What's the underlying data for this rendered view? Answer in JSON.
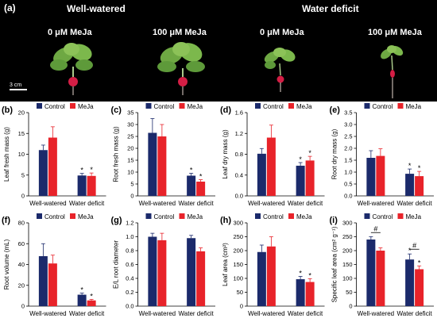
{
  "photo": {
    "panel_label": "(a)",
    "conditions": [
      "Well-watered",
      "Water deficit"
    ],
    "treatments": [
      "0 μM MeJa",
      "100 μM MeJa",
      "0 μM MeJa",
      "100 μM MeJa"
    ],
    "scale_label": "3 cm"
  },
  "colors": {
    "control": "#1b2a6b",
    "meja": "#e8232a",
    "photo_bg": "#000000",
    "leaf": "#6ea843",
    "root": "#d41e45"
  },
  "chart_data": [
    {
      "type": "bar",
      "panel": "(b)",
      "ylabel": "Leaf fresh mass (g)",
      "categories": [
        "Well-watered",
        "Water deficit"
      ],
      "ylim": [
        0,
        20
      ],
      "yticks": [
        0,
        5,
        10,
        15,
        20
      ],
      "legend": [
        "Control",
        "MeJa"
      ],
      "series": [
        {
          "name": "Control",
          "values": [
            11.0,
            4.9
          ],
          "errors": [
            1.2,
            0.5
          ],
          "marks": [
            "",
            "*"
          ]
        },
        {
          "name": "MeJa",
          "values": [
            14.0,
            4.8
          ],
          "errors": [
            2.6,
            0.7
          ],
          "marks": [
            "",
            "*"
          ]
        }
      ],
      "pairs": []
    },
    {
      "type": "bar",
      "panel": "(c)",
      "ylabel": "Root fresh mass (g)",
      "categories": [
        "Well-watered",
        "Water deficit"
      ],
      "ylim": [
        0,
        35
      ],
      "yticks": [
        0,
        5,
        10,
        15,
        20,
        25,
        30,
        35
      ],
      "legend": [
        "Control",
        "MeJa"
      ],
      "series": [
        {
          "name": "Control",
          "values": [
            26.5,
            8.5
          ],
          "errors": [
            6.0,
            1.0
          ],
          "marks": [
            "",
            "*"
          ]
        },
        {
          "name": "MeJa",
          "values": [
            25.0,
            6.0
          ],
          "errors": [
            5.0,
            0.8
          ],
          "marks": [
            "",
            "*"
          ]
        }
      ],
      "pairs": []
    },
    {
      "type": "bar",
      "panel": "(d)",
      "ylabel": "Leaf dry mass (g)",
      "categories": [
        "Well-watered",
        "Water deficit"
      ],
      "ylim": [
        0,
        1.6
      ],
      "yticks": [
        0,
        0.4,
        0.8,
        1.2,
        1.6
      ],
      "legend": [
        "Control",
        "MeJa"
      ],
      "series": [
        {
          "name": "Control",
          "values": [
            0.81,
            0.58
          ],
          "errors": [
            0.1,
            0.06
          ],
          "marks": [
            "",
            "*"
          ]
        },
        {
          "name": "MeJa",
          "values": [
            1.12,
            0.68
          ],
          "errors": [
            0.24,
            0.08
          ],
          "marks": [
            "",
            "*"
          ]
        }
      ],
      "pairs": []
    },
    {
      "type": "bar",
      "panel": "(e)",
      "ylabel": "Root dry mass (g)",
      "categories": [
        "Well-watered",
        "Water deficit"
      ],
      "ylim": [
        0,
        3.5
      ],
      "yticks": [
        0,
        0.5,
        1.0,
        1.5,
        2.0,
        2.5,
        3.0,
        3.5
      ],
      "legend": [
        "Control",
        "MeJa"
      ],
      "series": [
        {
          "name": "Control",
          "values": [
            1.6,
            0.93
          ],
          "errors": [
            0.3,
            0.2
          ],
          "marks": [
            "",
            "*"
          ]
        },
        {
          "name": "MeJa",
          "values": [
            1.68,
            0.83
          ],
          "errors": [
            0.3,
            0.2
          ],
          "marks": [
            "",
            "*"
          ]
        }
      ],
      "pairs": []
    },
    {
      "type": "bar",
      "panel": "(f)",
      "ylabel": "Root volume (mL)",
      "categories": [
        "Well-watered",
        "Water deficit"
      ],
      "ylim": [
        0,
        80
      ],
      "yticks": [
        0,
        20,
        40,
        60,
        80
      ],
      "legend": [
        "Control",
        "MeJa"
      ],
      "series": [
        {
          "name": "Control",
          "values": [
            48,
            11
          ],
          "errors": [
            12,
            1.5
          ],
          "marks": [
            "",
            "*"
          ]
        },
        {
          "name": "MeJa",
          "values": [
            41,
            5.5
          ],
          "errors": [
            8,
            1
          ],
          "marks": [
            "",
            "*"
          ]
        }
      ],
      "pairs": []
    },
    {
      "type": "bar",
      "panel": "(g)",
      "ylabel": "E/L root diameter",
      "categories": [
        "Well-watered",
        "Water deficit"
      ],
      "ylim": [
        0,
        1.2
      ],
      "yticks": [
        0,
        0.2,
        0.4,
        0.6,
        0.8,
        1.0,
        1.2
      ],
      "legend": [
        "Control",
        "MeJa"
      ],
      "series": [
        {
          "name": "Control",
          "values": [
            1.0,
            0.98
          ],
          "errors": [
            0.05,
            0.04
          ],
          "marks": [
            "",
            ""
          ]
        },
        {
          "name": "MeJa",
          "values": [
            0.95,
            0.79
          ],
          "errors": [
            0.1,
            0.05
          ],
          "marks": [
            "",
            ""
          ]
        }
      ],
      "pairs": []
    },
    {
      "type": "bar",
      "panel": "(h)",
      "ylabel": "Leaf area (cm²)",
      "categories": [
        "Well-watered",
        "Water deficit"
      ],
      "ylim": [
        0,
        300
      ],
      "yticks": [
        0,
        50,
        100,
        150,
        200,
        250,
        300
      ],
      "legend": [
        "Control",
        "MeJa"
      ],
      "series": [
        {
          "name": "Control",
          "values": [
            195,
            97
          ],
          "errors": [
            25,
            10
          ],
          "marks": [
            "",
            "*"
          ]
        },
        {
          "name": "MeJa",
          "values": [
            215,
            87
          ],
          "errors": [
            35,
            12
          ],
          "marks": [
            "",
            "*"
          ]
        }
      ],
      "pairs": []
    },
    {
      "type": "bar",
      "panel": "(i)",
      "ylabel": "Specific leaf area (cm² g⁻¹)",
      "categories": [
        "Well-watered",
        "Water deficit"
      ],
      "ylim": [
        0,
        300
      ],
      "yticks": [
        0,
        50,
        100,
        150,
        200,
        250,
        300
      ],
      "legend": [
        "Control",
        "MeJa"
      ],
      "series": [
        {
          "name": "Control",
          "values": [
            240,
            168
          ],
          "errors": [
            10,
            20
          ],
          "marks": [
            "",
            "*"
          ]
        },
        {
          "name": "MeJa",
          "values": [
            200,
            133
          ],
          "errors": [
            10,
            12
          ],
          "marks": [
            "",
            "*"
          ]
        }
      ],
      "pairs": [
        {
          "category": 0,
          "mark": "#",
          "y": 265
        },
        {
          "category": 1,
          "mark": "#",
          "y": 205
        }
      ]
    }
  ]
}
